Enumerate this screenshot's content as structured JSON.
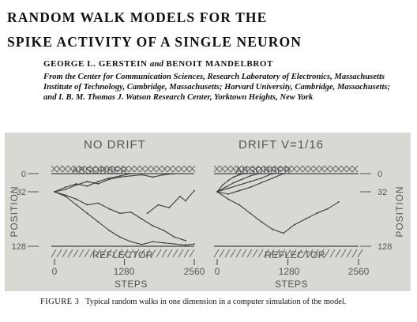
{
  "paper": {
    "title_lines": [
      "Random walk models for the",
      "spike activity of a single neuron"
    ],
    "author1": "GEORGE L. GERSTEIN",
    "and": "and",
    "author2": "BENOIT MANDELBROT",
    "affiliation": "From the Center for Communication Sciences, Research Laboratory of Electronics, Massachusetts Institute of Technology, Cambridge, Massachusetts; Harvard University, Cambridge, Massachusetts; and I. B. M. Thomas J. Watson Research Center, Yorktown Heights, New York"
  },
  "figure": {
    "label": "FIGURE 3",
    "caption": "Typical random walks in one dimension in a computer simulation of the model.",
    "y_axis_label": "POSITION",
    "x_axis_label": "STEPS",
    "absorber_label": "ABSORBER",
    "reflector_label": "REFLECTOR",
    "panels": [
      {
        "title": "NO DRIFT",
        "x_ticks": [
          "0",
          "1280",
          "2560"
        ],
        "y_ticks": [
          "0",
          "32",
          "128"
        ]
      },
      {
        "title": "DRIFT V=1/16",
        "x_ticks": [
          "0",
          "1280",
          "2560"
        ],
        "y_ticks": [
          "0",
          "32",
          "128"
        ]
      }
    ]
  },
  "chart_data": [
    {
      "type": "line",
      "title": "NO DRIFT",
      "xlabel": "STEPS",
      "ylabel": "POSITION",
      "xlim": [
        0,
        2560
      ],
      "ylim": [
        0,
        128
      ],
      "y_inverted": true,
      "y_ticks": [
        0,
        32,
        128
      ],
      "x_ticks": [
        0,
        1280,
        2560
      ],
      "annotations": [
        "ABSORBER",
        "REFLECTOR"
      ],
      "series": [
        {
          "x": [
            0,
            200,
            400,
            600,
            800,
            1000,
            1200,
            1400,
            1600,
            1800,
            2000,
            2200
          ],
          "y": [
            32,
            28,
            20,
            14,
            18,
            10,
            6,
            4,
            2,
            6,
            2,
            0
          ]
        },
        {
          "x": [
            0,
            200,
            400,
            600,
            800,
            1000,
            1200,
            1400,
            1600,
            1800,
            2000,
            2200,
            2400
          ],
          "y": [
            32,
            38,
            45,
            55,
            52,
            62,
            70,
            68,
            80,
            92,
            100,
            112,
            118
          ]
        },
        {
          "x": [
            0,
            200,
            400,
            600,
            800,
            1000,
            1200,
            1400,
            1600,
            1800,
            2000,
            2200,
            2400,
            2560
          ],
          "y": [
            32,
            40,
            55,
            70,
            85,
            100,
            112,
            120,
            125,
            120,
            122,
            124,
            126,
            124
          ]
        },
        {
          "x": [
            0,
            200,
            400,
            600,
            800,
            1000,
            1200,
            1400
          ],
          "y": [
            32,
            24,
            18,
            22,
            14,
            8,
            4,
            0
          ]
        },
        {
          "x": [
            1700,
            1900,
            2100,
            2300,
            2400,
            2560
          ],
          "y": [
            70,
            55,
            60,
            40,
            48,
            30
          ]
        }
      ]
    },
    {
      "type": "line",
      "title": "DRIFT V=1/16",
      "xlabel": "STEPS",
      "ylabel": "POSITION",
      "xlim": [
        0,
        2560
      ],
      "ylim": [
        0,
        128
      ],
      "y_inverted": true,
      "y_ticks": [
        0,
        32,
        128
      ],
      "x_ticks": [
        0,
        1280,
        2560
      ],
      "annotations": [
        "ABSORBER",
        "REFLECTOR"
      ],
      "series": [
        {
          "x": [
            0,
            100,
            200,
            300,
            400,
            500
          ],
          "y": [
            32,
            20,
            12,
            6,
            2,
            0
          ]
        },
        {
          "x": [
            0,
            150,
            300,
            450,
            600,
            750
          ],
          "y": [
            32,
            24,
            16,
            10,
            4,
            0
          ]
        },
        {
          "x": [
            0,
            200,
            400,
            600,
            800,
            1000
          ],
          "y": [
            32,
            26,
            20,
            14,
            8,
            0
          ]
        },
        {
          "x": [
            0,
            200,
            400,
            600,
            800,
            1000,
            1200
          ],
          "y": [
            32,
            36,
            30,
            24,
            16,
            8,
            0
          ]
        },
        {
          "x": [
            0,
            200,
            400,
            600,
            800,
            1000,
            1200,
            1400,
            1600,
            1800,
            2000,
            2200
          ],
          "y": [
            32,
            45,
            55,
            70,
            85,
            98,
            105,
            90,
            80,
            70,
            62,
            50
          ]
        }
      ]
    }
  ]
}
